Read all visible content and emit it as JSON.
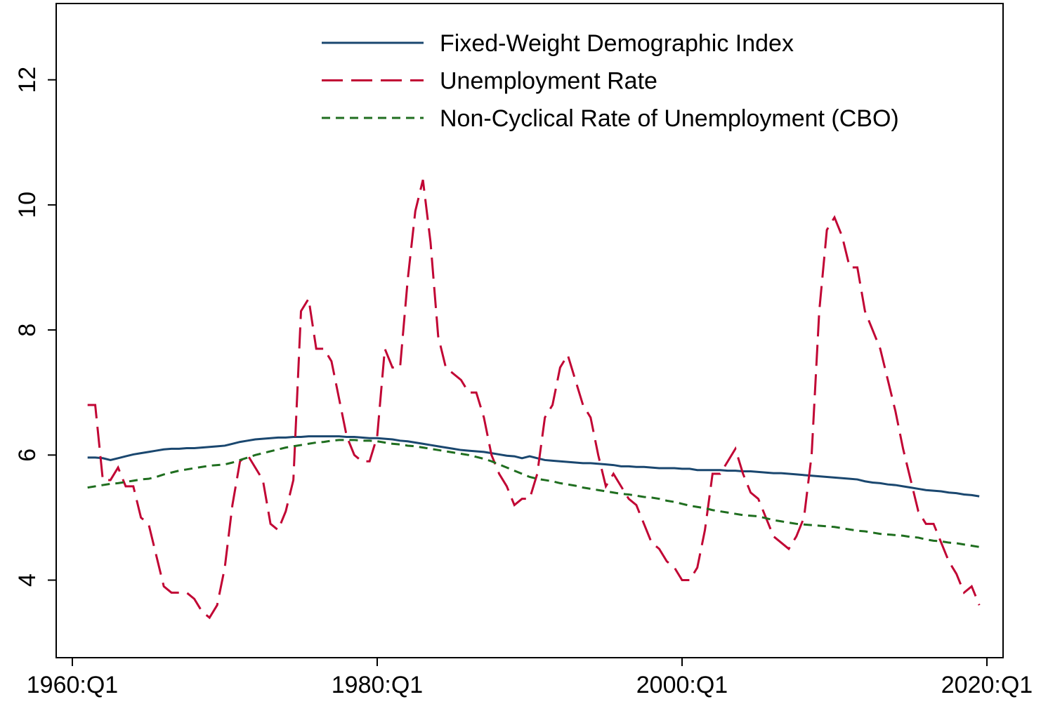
{
  "chart_data": {
    "type": "line",
    "x": [
      1961,
      1961.5,
      1962,
      1962.5,
      1963,
      1963.5,
      1964,
      1964.5,
      1965,
      1965.5,
      1966,
      1966.5,
      1967,
      1967.5,
      1968,
      1968.5,
      1969,
      1969.5,
      1970,
      1970.5,
      1971,
      1971.5,
      1972,
      1972.5,
      1973,
      1973.5,
      1974,
      1974.5,
      1975,
      1975.5,
      1976,
      1976.5,
      1977,
      1977.5,
      1978,
      1978.5,
      1979,
      1979.5,
      1980,
      1980.5,
      1981,
      1981.5,
      1982,
      1982.5,
      1983,
      1983.5,
      1984,
      1984.5,
      1985,
      1985.5,
      1986,
      1986.5,
      1987,
      1987.5,
      1988,
      1988.5,
      1989,
      1989.5,
      1990,
      1990.5,
      1991,
      1991.5,
      1992,
      1992.5,
      1993,
      1993.5,
      1994,
      1994.5,
      1995,
      1995.5,
      1996,
      1996.5,
      1997,
      1997.5,
      1998,
      1998.5,
      1999,
      1999.5,
      2000,
      2000.5,
      2001,
      2001.5,
      2002,
      2002.5,
      2003,
      2003.5,
      2004,
      2004.5,
      2005,
      2005.5,
      2006,
      2006.5,
      2007,
      2007.5,
      2008,
      2008.5,
      2009,
      2009.5,
      2010,
      2010.5,
      2011,
      2011.5,
      2012,
      2012.5,
      2013,
      2013.5,
      2014,
      2014.5,
      2015,
      2015.5,
      2016,
      2016.5,
      2017,
      2017.5,
      2018,
      2018.5,
      2019,
      2019.5
    ],
    "series": [
      {
        "name": "Fixed-Weight Demographic Index",
        "color": "#1a476f",
        "dash": "solid",
        "values": [
          5.96,
          5.96,
          5.95,
          5.92,
          5.95,
          5.98,
          6.01,
          6.03,
          6.05,
          6.07,
          6.09,
          6.1,
          6.1,
          6.11,
          6.11,
          6.12,
          6.13,
          6.14,
          6.15,
          6.18,
          6.21,
          6.23,
          6.25,
          6.26,
          6.27,
          6.28,
          6.28,
          6.29,
          6.29,
          6.3,
          6.3,
          6.3,
          6.3,
          6.3,
          6.29,
          6.29,
          6.28,
          6.27,
          6.27,
          6.26,
          6.25,
          6.23,
          6.22,
          6.2,
          6.18,
          6.16,
          6.14,
          6.12,
          6.1,
          6.08,
          6.07,
          6.06,
          6.05,
          6.03,
          6.01,
          5.99,
          5.98,
          5.95,
          5.98,
          5.95,
          5.92,
          5.91,
          5.9,
          5.89,
          5.88,
          5.87,
          5.87,
          5.86,
          5.85,
          5.84,
          5.82,
          5.82,
          5.81,
          5.81,
          5.8,
          5.79,
          5.79,
          5.79,
          5.78,
          5.78,
          5.76,
          5.76,
          5.76,
          5.76,
          5.75,
          5.75,
          5.74,
          5.74,
          5.73,
          5.72,
          5.71,
          5.71,
          5.7,
          5.69,
          5.68,
          5.67,
          5.66,
          5.65,
          5.64,
          5.63,
          5.62,
          5.61,
          5.58,
          5.56,
          5.55,
          5.53,
          5.52,
          5.5,
          5.48,
          5.46,
          5.44,
          5.43,
          5.42,
          5.4,
          5.39,
          5.37,
          5.36,
          5.34
        ]
      },
      {
        "name": "Unemployment Rate",
        "color": "#c10534",
        "dash": "longdash",
        "values": [
          6.8,
          6.8,
          5.6,
          5.6,
          5.8,
          5.5,
          5.5,
          5.0,
          4.9,
          4.4,
          3.9,
          3.8,
          3.8,
          3.8,
          3.7,
          3.5,
          3.4,
          3.6,
          4.2,
          5.2,
          5.9,
          6.0,
          5.8,
          5.6,
          4.9,
          4.8,
          5.1,
          5.6,
          8.3,
          8.5,
          7.7,
          7.7,
          7.5,
          6.9,
          6.3,
          6.0,
          5.9,
          5.9,
          6.3,
          7.7,
          7.4,
          7.4,
          8.8,
          9.9,
          10.4,
          9.4,
          7.9,
          7.4,
          7.3,
          7.2,
          7.0,
          7.0,
          6.6,
          6.0,
          5.7,
          5.5,
          5.2,
          5.3,
          5.3,
          5.7,
          6.6,
          6.8,
          7.4,
          7.6,
          7.2,
          6.8,
          6.6,
          6.0,
          5.5,
          5.7,
          5.5,
          5.3,
          5.2,
          4.9,
          4.6,
          4.5,
          4.3,
          4.2,
          4.0,
          4.0,
          4.2,
          4.8,
          5.7,
          5.7,
          5.9,
          6.1,
          5.7,
          5.4,
          5.3,
          5.0,
          4.7,
          4.6,
          4.5,
          4.7,
          5.0,
          6.0,
          8.3,
          9.6,
          9.8,
          9.5,
          9.0,
          9.0,
          8.3,
          8.0,
          7.7,
          7.2,
          6.7,
          6.1,
          5.6,
          5.1,
          4.9,
          4.9,
          4.6,
          4.3,
          4.1,
          3.8,
          3.9,
          3.6
        ]
      },
      {
        "name": "Non-Cyclical Rate of Unemployment (CBO)",
        "color": "#1f6e1f",
        "dash": "dash",
        "values": [
          5.48,
          5.5,
          5.52,
          5.54,
          5.55,
          5.57,
          5.59,
          5.61,
          5.62,
          5.65,
          5.69,
          5.72,
          5.75,
          5.77,
          5.79,
          5.81,
          5.83,
          5.84,
          5.85,
          5.88,
          5.92,
          5.96,
          6.0,
          6.03,
          6.06,
          6.09,
          6.12,
          6.14,
          6.16,
          6.18,
          6.2,
          6.21,
          6.23,
          6.24,
          6.24,
          6.24,
          6.23,
          6.23,
          6.22,
          6.2,
          6.18,
          6.17,
          6.15,
          6.14,
          6.12,
          6.1,
          6.08,
          6.06,
          6.04,
          6.02,
          6.0,
          5.97,
          5.94,
          5.9,
          5.85,
          5.8,
          5.75,
          5.7,
          5.65,
          5.62,
          5.6,
          5.58,
          5.55,
          5.53,
          5.51,
          5.48,
          5.46,
          5.44,
          5.42,
          5.4,
          5.38,
          5.37,
          5.35,
          5.33,
          5.32,
          5.3,
          5.27,
          5.25,
          5.22,
          5.19,
          5.17,
          5.15,
          5.12,
          5.1,
          5.08,
          5.06,
          5.04,
          5.03,
          5.02,
          4.99,
          4.96,
          4.94,
          4.92,
          4.9,
          4.89,
          4.88,
          4.87,
          4.86,
          4.85,
          4.83,
          4.81,
          4.79,
          4.78,
          4.76,
          4.74,
          4.73,
          4.72,
          4.71,
          4.69,
          4.68,
          4.65,
          4.63,
          4.62,
          4.6,
          4.59,
          4.57,
          4.55,
          4.53
        ]
      }
    ],
    "xlim": [
      1958.94,
      2021.06
    ],
    "xticks": [
      {
        "value": 1960,
        "label": "1960:Q1"
      },
      {
        "value": 1980,
        "label": "1980:Q1"
      },
      {
        "value": 2000,
        "label": "2000:Q1"
      },
      {
        "value": 2020,
        "label": "2020:Q1"
      }
    ],
    "ylim": [
      2.76,
      13.22
    ],
    "yticks": [
      4,
      6,
      8,
      10,
      12
    ],
    "grid": false,
    "legend": "top"
  }
}
